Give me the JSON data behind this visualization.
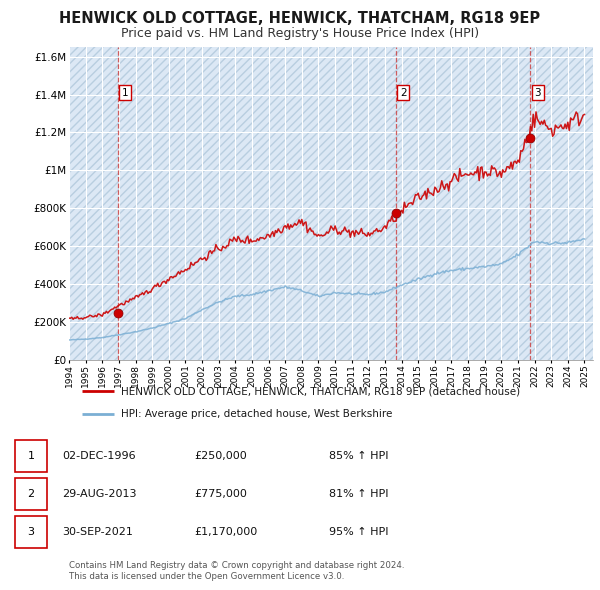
{
  "title": "HENWICK OLD COTTAGE, HENWICK, THATCHAM, RG18 9EP",
  "subtitle": "Price paid vs. HM Land Registry's House Price Index (HPI)",
  "title_fontsize": 10.5,
  "subtitle_fontsize": 9,
  "background_color": "#ffffff",
  "plot_bg_color": "#dce8f5",
  "grid_color": "#ffffff",
  "sale_color": "#cc0000",
  "hpi_color": "#7bafd4",
  "sale_dates": [
    1996.92,
    2013.66,
    2021.75
  ],
  "sale_values": [
    250000,
    775000,
    1170000
  ],
  "sale_labels": [
    "1",
    "2",
    "3"
  ],
  "vline_dates": [
    1996.92,
    2013.66,
    2021.75
  ],
  "xmin": 1994.0,
  "xmax": 2025.5,
  "ymin": 0,
  "ymax": 1650000,
  "yticks": [
    0,
    200000,
    400000,
    600000,
    800000,
    1000000,
    1200000,
    1400000,
    1600000
  ],
  "ytick_labels": [
    "£0",
    "£200K",
    "£400K",
    "£600K",
    "£800K",
    "£1M",
    "£1.2M",
    "£1.4M",
    "£1.6M"
  ],
  "legend_sale_label": "HENWICK OLD COTTAGE, HENWICK, THATCHAM, RG18 9EP (detached house)",
  "legend_hpi_label": "HPI: Average price, detached house, West Berkshire",
  "table_rows": [
    [
      "1",
      "02-DEC-1996",
      "£250,000",
      "85% ↑ HPI"
    ],
    [
      "2",
      "29-AUG-2013",
      "£775,000",
      "81% ↑ HPI"
    ],
    [
      "3",
      "30-SEP-2021",
      "£1,170,000",
      "95% ↑ HPI"
    ]
  ],
  "footer_text": "Contains HM Land Registry data © Crown copyright and database right 2024.\nThis data is licensed under the Open Government Licence v3.0.",
  "xtick_years": [
    1994,
    1995,
    1996,
    1997,
    1998,
    1999,
    2000,
    2001,
    2002,
    2003,
    2004,
    2005,
    2006,
    2007,
    2008,
    2009,
    2010,
    2011,
    2012,
    2013,
    2014,
    2015,
    2016,
    2017,
    2018,
    2019,
    2020,
    2021,
    2022,
    2023,
    2024,
    2025
  ],
  "hpi_base": {
    "1994": 105000,
    "1995": 110000,
    "1996": 118000,
    "1997": 133000,
    "1998": 148000,
    "1999": 168000,
    "2000": 192000,
    "2001": 218000,
    "2002": 265000,
    "2003": 305000,
    "2004": 335000,
    "2005": 345000,
    "2006": 365000,
    "2007": 385000,
    "2008": 365000,
    "2009": 335000,
    "2010": 355000,
    "2011": 348000,
    "2012": 345000,
    "2013": 358000,
    "2014": 395000,
    "2015": 425000,
    "2016": 455000,
    "2017": 472000,
    "2018": 482000,
    "2019": 492000,
    "2020": 505000,
    "2021": 555000,
    "2022": 625000,
    "2023": 615000,
    "2024": 618000,
    "2025": 638000
  },
  "sale_base": {
    "1994": 215000,
    "1995": 225000,
    "1996": 238000,
    "1997": 288000,
    "1998": 325000,
    "1999": 375000,
    "2000": 428000,
    "2001": 478000,
    "2002": 535000,
    "2003": 585000,
    "2004": 635000,
    "2005": 630000,
    "2006": 655000,
    "2007": 705000,
    "2008": 730000,
    "2009": 648000,
    "2010": 692000,
    "2011": 672000,
    "2012": 662000,
    "2013": 698000,
    "2014": 785000,
    "2015": 855000,
    "2016": 898000,
    "2017": 945000,
    "2018": 985000,
    "2019": 998000,
    "2020": 985000,
    "2021": 1048000,
    "2022": 1275000,
    "2023": 1215000,
    "2024": 1245000,
    "2025": 1295000
  }
}
